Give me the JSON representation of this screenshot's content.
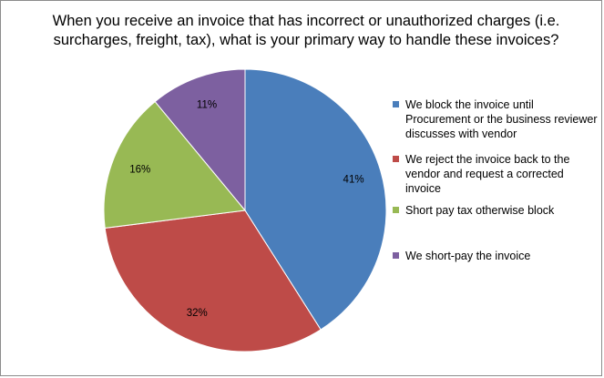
{
  "chart_data": {
    "type": "pie",
    "title": "When you receive an invoice that has incorrect or unauthorized charges (i.e. surcharges, freight, tax), what is your primary way to handle these invoices?",
    "legend_position": "right",
    "categories": [
      "We block the invoice until Procurement or the business reviewer discusses with vendor",
      "We reject the invoice back to the vendor and request a corrected invoice",
      "Short pay tax  otherwise block",
      "We short-pay the invoice"
    ],
    "values": [
      41,
      32,
      16,
      11
    ],
    "value_labels": [
      "41%",
      "32%",
      "16%",
      "11%"
    ],
    "colors": [
      "#4a7ebb",
      "#be4b48",
      "#98b954",
      "#7d60a0"
    ]
  }
}
